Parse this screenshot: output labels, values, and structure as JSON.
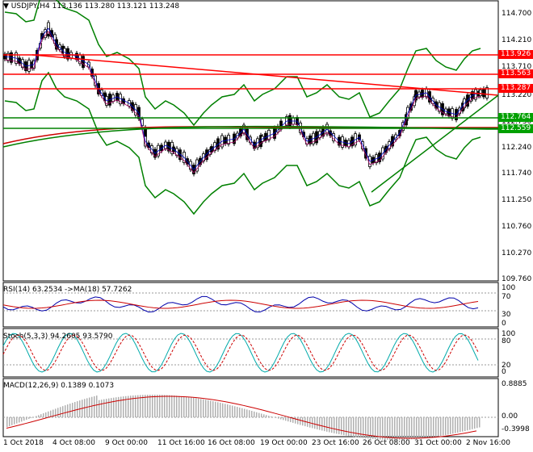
{
  "header": {
    "symbol": "USDJPY,H4",
    "ohlc": "113.136 113.280 113.121 113.248"
  },
  "price_axis": [
    "114.700",
    "114.210",
    "113.710",
    "113.220",
    "112.730",
    "112.240",
    "111.740",
    "111.250",
    "110.760",
    "110.270",
    "109.760"
  ],
  "price_labels": [
    {
      "text": "113.926",
      "bg": "#ff0000",
      "fg": "#ffffff"
    },
    {
      "text": "113.563",
      "bg": "#ff0000",
      "fg": "#ffffff"
    },
    {
      "text": "113.287",
      "bg": "#ff0000",
      "fg": "#ffffff"
    },
    {
      "text": "112.764",
      "bg": "#00a000",
      "fg": "#ffffff"
    },
    {
      "text": "112.559",
      "bg": "#00a000",
      "fg": "#ffffff"
    }
  ],
  "rsi": {
    "label": "RSI(14) 63.2534  ->MA(18) 57.7262",
    "axis": [
      "100",
      "70",
      "30",
      "0"
    ]
  },
  "stoch": {
    "label": "Stoch(5,3,3) 94.2605 93.5790",
    "axis": [
      "100",
      "80",
      "20",
      "0"
    ]
  },
  "macd": {
    "label": "MACD(12,26,9) 0.1389 0.1073",
    "axis": [
      "0.8885",
      "0.00",
      "-0.3998"
    ]
  },
  "time_axis": [
    "1 Oct 2018",
    "4 Oct 08:00",
    "9 Oct 00:00",
    "11 Oct 16:00",
    "16 Oct 08:00",
    "19 Oct 00:00",
    "23 Oct 16:00",
    "26 Oct 08:00",
    "31 Oct 00:00",
    "2 Nov 16:00"
  ],
  "colors": {
    "grid": "#000000",
    "candle": "#000000",
    "resistance": "#ff0000",
    "support": "#008000",
    "bollinger": "#008000",
    "ma_red": "#cc0000",
    "rsi_line": "#0000aa",
    "rsi_ma": "#cc0000",
    "stoch_main": "#00aaaa",
    "stoch_signal": "#cc0000",
    "macd_signal": "#cc0000",
    "macd_hist": "#b0b0b0"
  }
}
